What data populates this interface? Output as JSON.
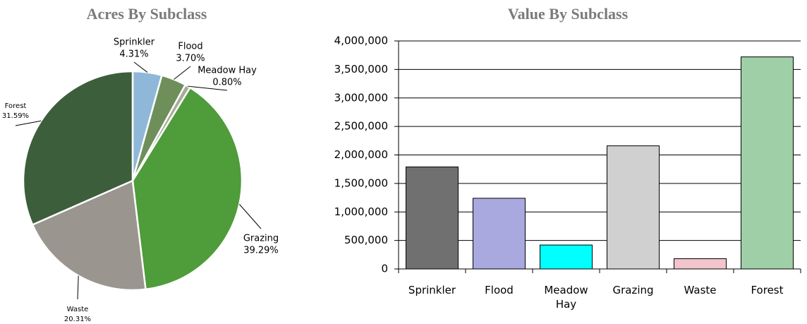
{
  "chart_data": [
    {
      "type": "pie",
      "title": "Acres By Subclass",
      "categories": [
        "Sprinkler",
        "Flood",
        "Meadow Hay",
        "Grazing",
        "Waste",
        "Forest"
      ],
      "values": [
        4.31,
        3.7,
        0.8,
        39.29,
        20.31,
        31.59
      ],
      "value_labels": [
        "4.31%",
        "3.70%",
        "0.80%",
        "39.29%",
        "20.31%",
        "31.59%"
      ],
      "colors": [
        "#8fb8d8",
        "#6f8f5a",
        "#a8ab98",
        "#4e9c3a",
        "#9a958e",
        "#3d5e3a"
      ]
    },
    {
      "type": "bar",
      "title": "Value By Subclass",
      "categories": [
        "Sprinkler",
        "Flood",
        "Meadow Hay",
        "Grazing",
        "Waste",
        "Forest"
      ],
      "values": [
        1790000,
        1240000,
        420000,
        2160000,
        180000,
        3720000
      ],
      "colors": [
        "#707070",
        "#a9a9e0",
        "#00ffff",
        "#d0d0d0",
        "#f2c4cb",
        "#9fcfa6"
      ],
      "ylim": [
        0,
        4000000
      ],
      "yticks": [
        0,
        {
          "value": 500000,
          "label": "500,000"
        },
        {
          "value": 1000000,
          "label": "1,000,000"
        },
        {
          "value": 1500000,
          "label": "1,500,000"
        },
        {
          "value": 2000000,
          "label": "2,000,000"
        },
        {
          "value": 2500000,
          "label": "2,500,000"
        },
        {
          "value": 3000000,
          "label": "3,000,000"
        },
        {
          "value": 3500000,
          "label": "3,500,000"
        },
        {
          "value": 4000000,
          "label": "4,000,000"
        }
      ],
      "grid": true
    }
  ]
}
